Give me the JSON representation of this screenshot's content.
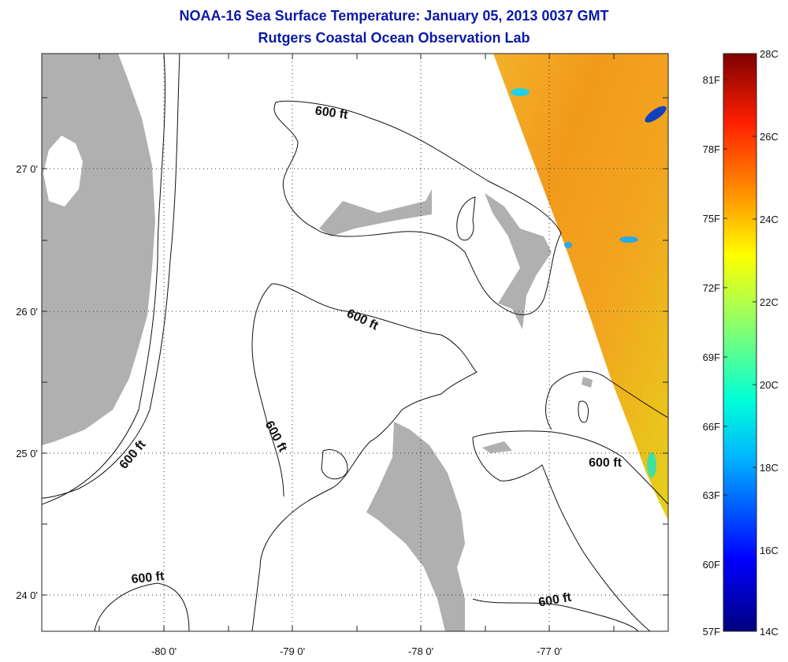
{
  "title": {
    "line1": "NOAA-16 Sea Surface Temperature:  January 05, 2013 0037 GMT",
    "line2": "Rutgers Coastal Ocean Observation Lab"
  },
  "map": {
    "lon_ticks": [
      "-80 0'",
      "-79 0'",
      "-78 0'",
      "-77 0'"
    ],
    "lat_ticks": [
      "27 0'",
      "26 0'",
      "25 0'",
      "24 0'"
    ],
    "contour_labels": [
      "600 ft",
      "600 ft",
      "600 ft",
      "600 ft",
      "600 ft",
      "600 ft"
    ],
    "colors": {
      "land": "#b0b0b0",
      "sst_warm": "#f2a21e",
      "sst_cool": "#e9d81c",
      "grid": "#333333"
    }
  },
  "colorbar": {
    "fahrenheit": [
      "81F",
      "78F",
      "75F",
      "72F",
      "69F",
      "66F",
      "63F",
      "60F",
      "57F"
    ],
    "celsius": [
      "28C",
      "26C",
      "24C",
      "22C",
      "20C",
      "18C",
      "16C",
      "14C"
    ]
  }
}
